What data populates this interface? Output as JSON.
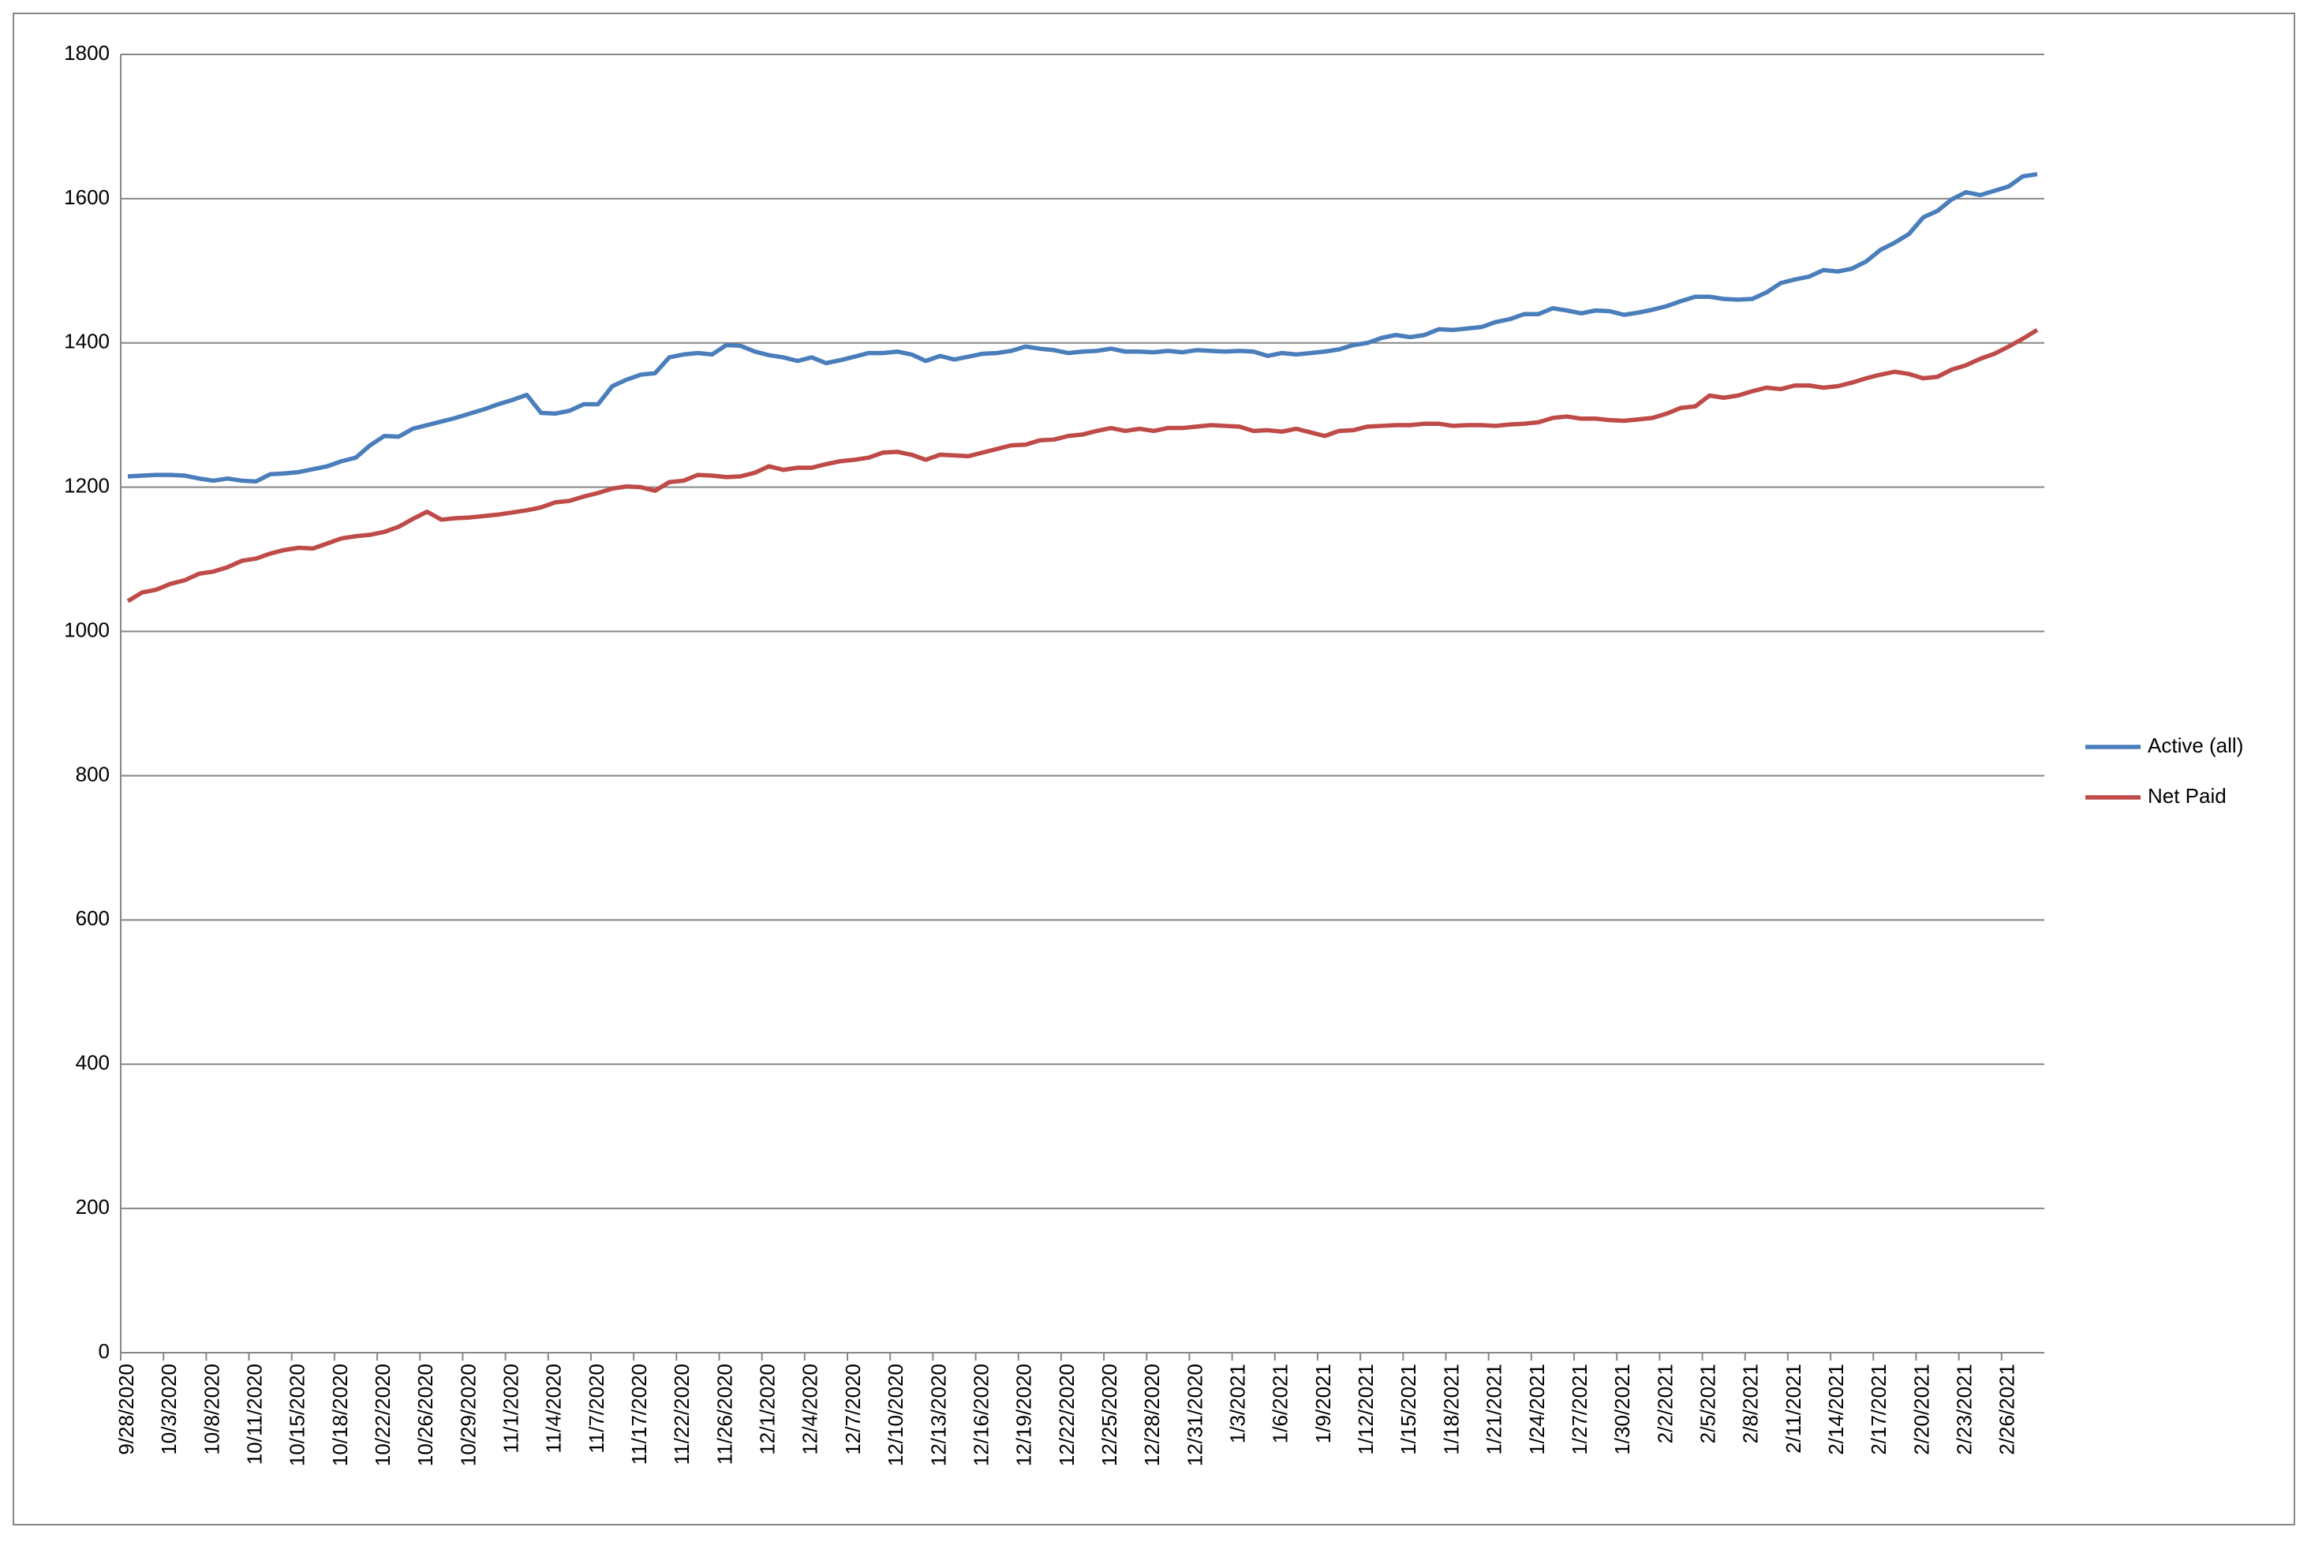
{
  "chart_data": {
    "type": "line",
    "categories": [
      "9/28/2020",
      null,
      null,
      "10/3/2020",
      null,
      null,
      "10/8/2020",
      null,
      null,
      "10/11/2020",
      null,
      null,
      "10/15/2020",
      null,
      null,
      "10/18/2020",
      null,
      null,
      "10/22/2020",
      null,
      null,
      "10/26/2020",
      null,
      null,
      "10/29/2020",
      null,
      null,
      "11/1/2020",
      null,
      null,
      "11/4/2020",
      null,
      null,
      "11/7/2020",
      null,
      null,
      "11/17/2020",
      null,
      null,
      "11/22/2020",
      null,
      null,
      "11/26/2020",
      null,
      null,
      "12/1/2020",
      null,
      null,
      "12/4/2020",
      null,
      null,
      "12/7/2020",
      null,
      null,
      "12/10/2020",
      null,
      null,
      "12/13/2020",
      null,
      null,
      "12/16/2020",
      null,
      null,
      "12/19/2020",
      null,
      null,
      "12/22/2020",
      null,
      null,
      "12/25/2020",
      null,
      null,
      "12/28/2020",
      null,
      null,
      "12/31/2020",
      null,
      null,
      "1/3/2021",
      null,
      null,
      "1/6/2021",
      null,
      null,
      "1/9/2021",
      null,
      null,
      "1/12/2021",
      null,
      null,
      "1/15/2021",
      null,
      null,
      "1/18/2021",
      null,
      null,
      "1/21/2021",
      null,
      null,
      "1/24/2021",
      null,
      null,
      "1/27/2021",
      null,
      null,
      "1/30/2021",
      null,
      null,
      "2/2/2021",
      null,
      null,
      "2/5/2021",
      null,
      null,
      "2/8/2021",
      null,
      null,
      "2/11/2021",
      null,
      null,
      "2/14/2021",
      null,
      null,
      "2/17/2021",
      null,
      null,
      "2/20/2021",
      null,
      null,
      "2/23/2021",
      null,
      null,
      "2/26/2021",
      null,
      null
    ],
    "series": [
      {
        "name": "Active (all)",
        "color": "#4a7ebb",
        "values": [
          1215,
          1216,
          1217,
          1217,
          1216,
          1212,
          1209,
          1212,
          1209,
          1208,
          1218,
          1219,
          1221,
          1225,
          1229,
          1236,
          1241,
          1258,
          1271,
          1270,
          1281,
          1286,
          1291,
          1296,
          1302,
          1308,
          1315,
          1321,
          1328,
          1303,
          1302,
          1306,
          1315,
          1315,
          1340,
          1349,
          1356,
          1358,
          1380,
          1384,
          1386,
          1384,
          1397,
          1396,
          1388,
          1383,
          1380,
          1375,
          1380,
          1372,
          1376,
          1381,
          1386,
          1386,
          1388,
          1384,
          1375,
          1382,
          1377,
          1381,
          1385,
          1386,
          1389,
          1395,
          1392,
          1390,
          1386,
          1388,
          1389,
          1392,
          1388,
          1388,
          1387,
          1389,
          1387,
          1390,
          1389,
          1388,
          1389,
          1388,
          1382,
          1386,
          1384,
          1386,
          1388,
          1391,
          1397,
          1400,
          1407,
          1411,
          1408,
          1411,
          1419,
          1418,
          1420,
          1422,
          1429,
          1433,
          1440,
          1440,
          1448,
          1445,
          1441,
          1445,
          1444,
          1439,
          1442,
          1446,
          1451,
          1458,
          1464,
          1464,
          1461,
          1460,
          1461,
          1470,
          1483,
          1488,
          1492,
          1501,
          1499,
          1503,
          1513,
          1529,
          1539,
          1551,
          1574,
          1583,
          1599,
          1609,
          1605,
          1611,
          1617,
          1631,
          1634
        ]
      },
      {
        "name": "Net Paid",
        "color": "#be4b48",
        "values": [
          1042,
          1054,
          1058,
          1066,
          1071,
          1080,
          1083,
          1089,
          1098,
          1101,
          1108,
          1113,
          1116,
          1115,
          1122,
          1129,
          1132,
          1134,
          1138,
          1145,
          1156,
          1166,
          1155,
          1157,
          1158,
          1160,
          1162,
          1165,
          1168,
          1172,
          1179,
          1181,
          1187,
          1192,
          1198,
          1201,
          1200,
          1195,
          1207,
          1209,
          1217,
          1216,
          1214,
          1215,
          1220,
          1229,
          1224,
          1227,
          1227,
          1232,
          1236,
          1238,
          1241,
          1248,
          1249,
          1245,
          1238,
          1245,
          1244,
          1243,
          1248,
          1253,
          1258,
          1259,
          1265,
          1266,
          1271,
          1273,
          1278,
          1282,
          1278,
          1281,
          1278,
          1282,
          1282,
          1284,
          1286,
          1285,
          1284,
          1278,
          1279,
          1277,
          1281,
          1276,
          1271,
          1278,
          1279,
          1284,
          1285,
          1286,
          1286,
          1288,
          1288,
          1285,
          1286,
          1286,
          1285,
          1287,
          1288,
          1290,
          1296,
          1298,
          1295,
          1295,
          1293,
          1292,
          1294,
          1296,
          1302,
          1310,
          1312,
          1327,
          1324,
          1327,
          1333,
          1338,
          1336,
          1341,
          1341,
          1338,
          1340,
          1345,
          1351,
          1356,
          1360,
          1357,
          1351,
          1353,
          1363,
          1369,
          1378,
          1385,
          1395,
          1406,
          1418
        ]
      }
    ],
    "ylim": [
      0,
      1800
    ],
    "yticks": [
      0,
      200,
      400,
      600,
      800,
      1000,
      1200,
      1400,
      1600,
      1800
    ],
    "grid": true,
    "legend": "right"
  }
}
